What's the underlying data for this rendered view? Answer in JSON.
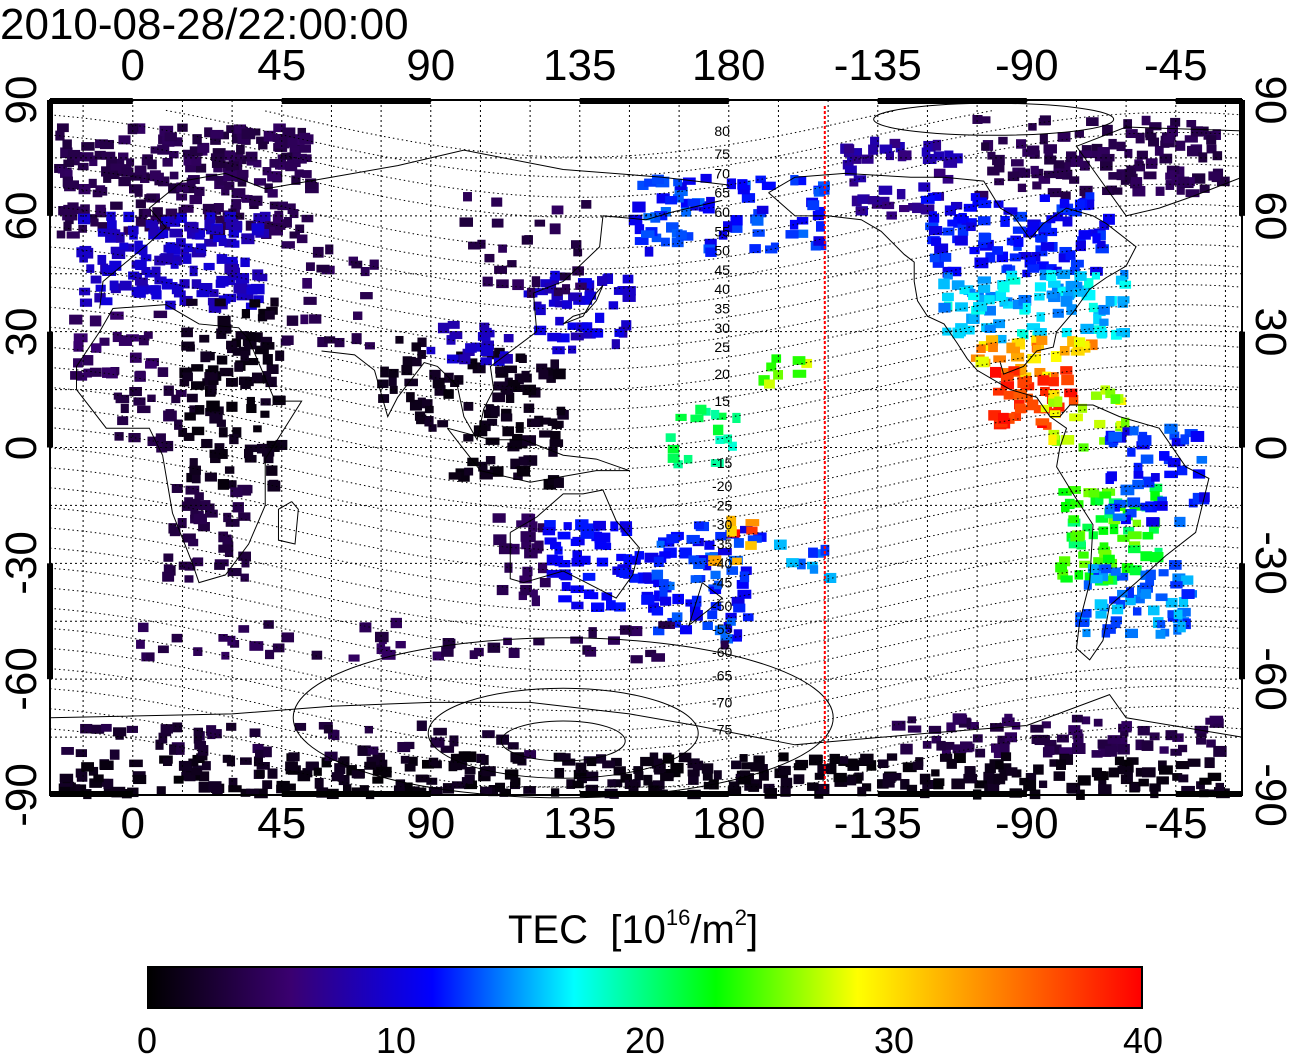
{
  "timestamp": "2010-08-28/22:00:00",
  "x_ticks": [
    "0",
    "45",
    "90",
    "135",
    "180",
    "-135",
    "-90",
    "-45"
  ],
  "y_ticks": [
    "90",
    "60",
    "30",
    "0",
    "-30",
    "-60",
    "-90"
  ],
  "colorbar": {
    "title_main": "TEC",
    "title_unit_pre": "[10",
    "title_unit_sup": "16",
    "title_unit_mid": "/m",
    "title_unit_sup2": "2",
    "title_unit_post": "]",
    "ticks": [
      "0",
      "10",
      "20",
      "30",
      "40"
    ],
    "colors": [
      "#000000",
      "#3a0070",
      "#0000ff",
      "#00ffff",
      "#00ff00",
      "#ffff00",
      "#ff8000",
      "#ff0000"
    ]
  },
  "contour_labels": [
    "80",
    "75",
    "70",
    "65",
    "60",
    "55",
    "50",
    "45",
    "40",
    "35",
    "30",
    "25",
    "20",
    "15",
    "-15",
    "-20",
    "-25",
    "-30",
    "-35",
    "-40",
    "-45",
    "-50",
    "-55",
    "-60",
    "-65",
    "-70",
    "-75"
  ],
  "terminator_color": "#ff0000",
  "map": {
    "lon_range": [
      -25,
      335
    ],
    "lat_range": [
      -90,
      90
    ],
    "terminator_lon": 209
  }
}
